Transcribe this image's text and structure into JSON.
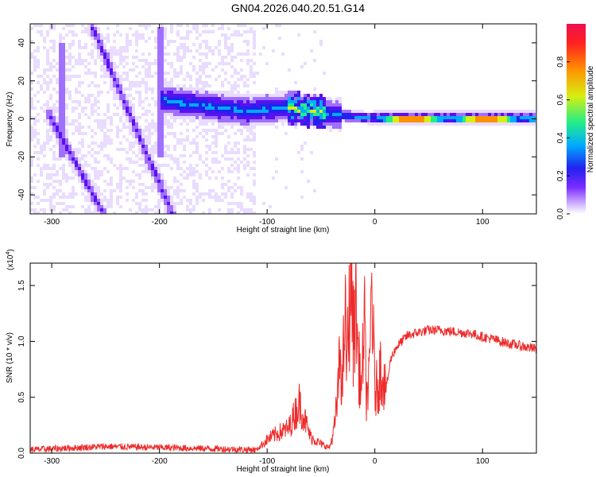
{
  "title": "GN04.2026.040.20.51.G14",
  "colors": {
    "snr_line": "#ee2a2a",
    "colormap": [
      "#ffffff",
      "#e9dcff",
      "#a070ff",
      "#5a10f0",
      "#2222ee",
      "#00aaff",
      "#22ee88",
      "#d8ee10",
      "#ff9000",
      "#ee1040"
    ]
  },
  "chart_data": [
    {
      "type": "heatmap",
      "xlabel": "Height of straight line (km)",
      "ylabel": "Frequency (Hz)",
      "xlim": [
        -320,
        150
      ],
      "ylim": [
        -50,
        50
      ],
      "x_ticks": [
        -300,
        -200,
        -100,
        0,
        100
      ],
      "y_ticks": [
        -40,
        -20,
        0,
        20,
        40
      ],
      "colorbar": {
        "label": "Normalized spectral amplitude",
        "range": [
          0,
          1
        ],
        "ticks": [
          0.0,
          0.2,
          0.4,
          0.6,
          0.8
        ]
      },
      "features": [
        {
          "name": "diagonal streak",
          "from": [
            -262,
            48
          ],
          "to": [
            -188,
            -50
          ],
          "amplitude": 0.3
        },
        {
          "name": "diagonal streak",
          "from": [
            -302,
            2
          ],
          "to": [
            -252,
            -50
          ],
          "amplitude": 0.3
        },
        {
          "name": "vertical streak",
          "x": -290,
          "y_from": -20,
          "y_to": 40,
          "amplitude": 0.2
        },
        {
          "name": "vertical streak",
          "x": -200,
          "y_from": -20,
          "y_to": 48,
          "amplitude": 0.2
        },
        {
          "name": "central ridge",
          "points": [
            [
              -200,
              10
            ],
            [
              -120,
              4
            ],
            [
              -80,
              6
            ],
            [
              -45,
              3
            ],
            [
              -20,
              1
            ],
            [
              0,
              0.5
            ],
            [
              150,
              0.5
            ]
          ],
          "amplitude": 0.5
        },
        {
          "name": "carrier band",
          "x_from": 0,
          "x_to": 150,
          "y": 0.5,
          "amplitude": 0.95
        }
      ]
    },
    {
      "type": "line",
      "xlabel": "Height of straight line (km)",
      "ylabel": "SNR (10 * v/v)",
      "y_multiplier": "(x10",
      "y_multiplier_exp": "4",
      "y_multiplier_close": ")",
      "xlim": [
        -320,
        150
      ],
      "ylim": [
        0,
        1.7
      ],
      "x_ticks": [
        -300,
        -200,
        -100,
        0,
        100
      ],
      "y_ticks": [
        0.0,
        0.5,
        1.0,
        1.5
      ],
      "series": [
        {
          "x": [
            -320,
            -250,
            -200,
            -150,
            -110,
            -100,
            -90,
            -80,
            -70,
            -60,
            -50,
            -42,
            -38,
            -35,
            -32,
            -30,
            -28,
            -26,
            -24,
            -22,
            -20,
            -18,
            -15,
            -12,
            -10,
            -8,
            -5,
            -3,
            0,
            3,
            5,
            8,
            10,
            15,
            20,
            25,
            30,
            40,
            50,
            60,
            70,
            80,
            90,
            100,
            110,
            120,
            130,
            140,
            150
          ],
          "y": [
            0.03,
            0.06,
            0.05,
            0.04,
            0.03,
            0.12,
            0.18,
            0.22,
            0.45,
            0.15,
            0.08,
            0.05,
            0.2,
            0.45,
            0.9,
            0.55,
            1.3,
            0.8,
            1.2,
            1.7,
            1.0,
            1.4,
            0.8,
            0.55,
            1.3,
            0.5,
            0.65,
            1.55,
            0.55,
            0.6,
            0.75,
            0.7,
            0.55,
            0.85,
            0.95,
            1.0,
            1.05,
            1.08,
            1.1,
            1.1,
            1.09,
            1.08,
            1.07,
            1.04,
            1.02,
            0.99,
            0.97,
            0.95,
            0.93
          ]
        }
      ]
    }
  ]
}
